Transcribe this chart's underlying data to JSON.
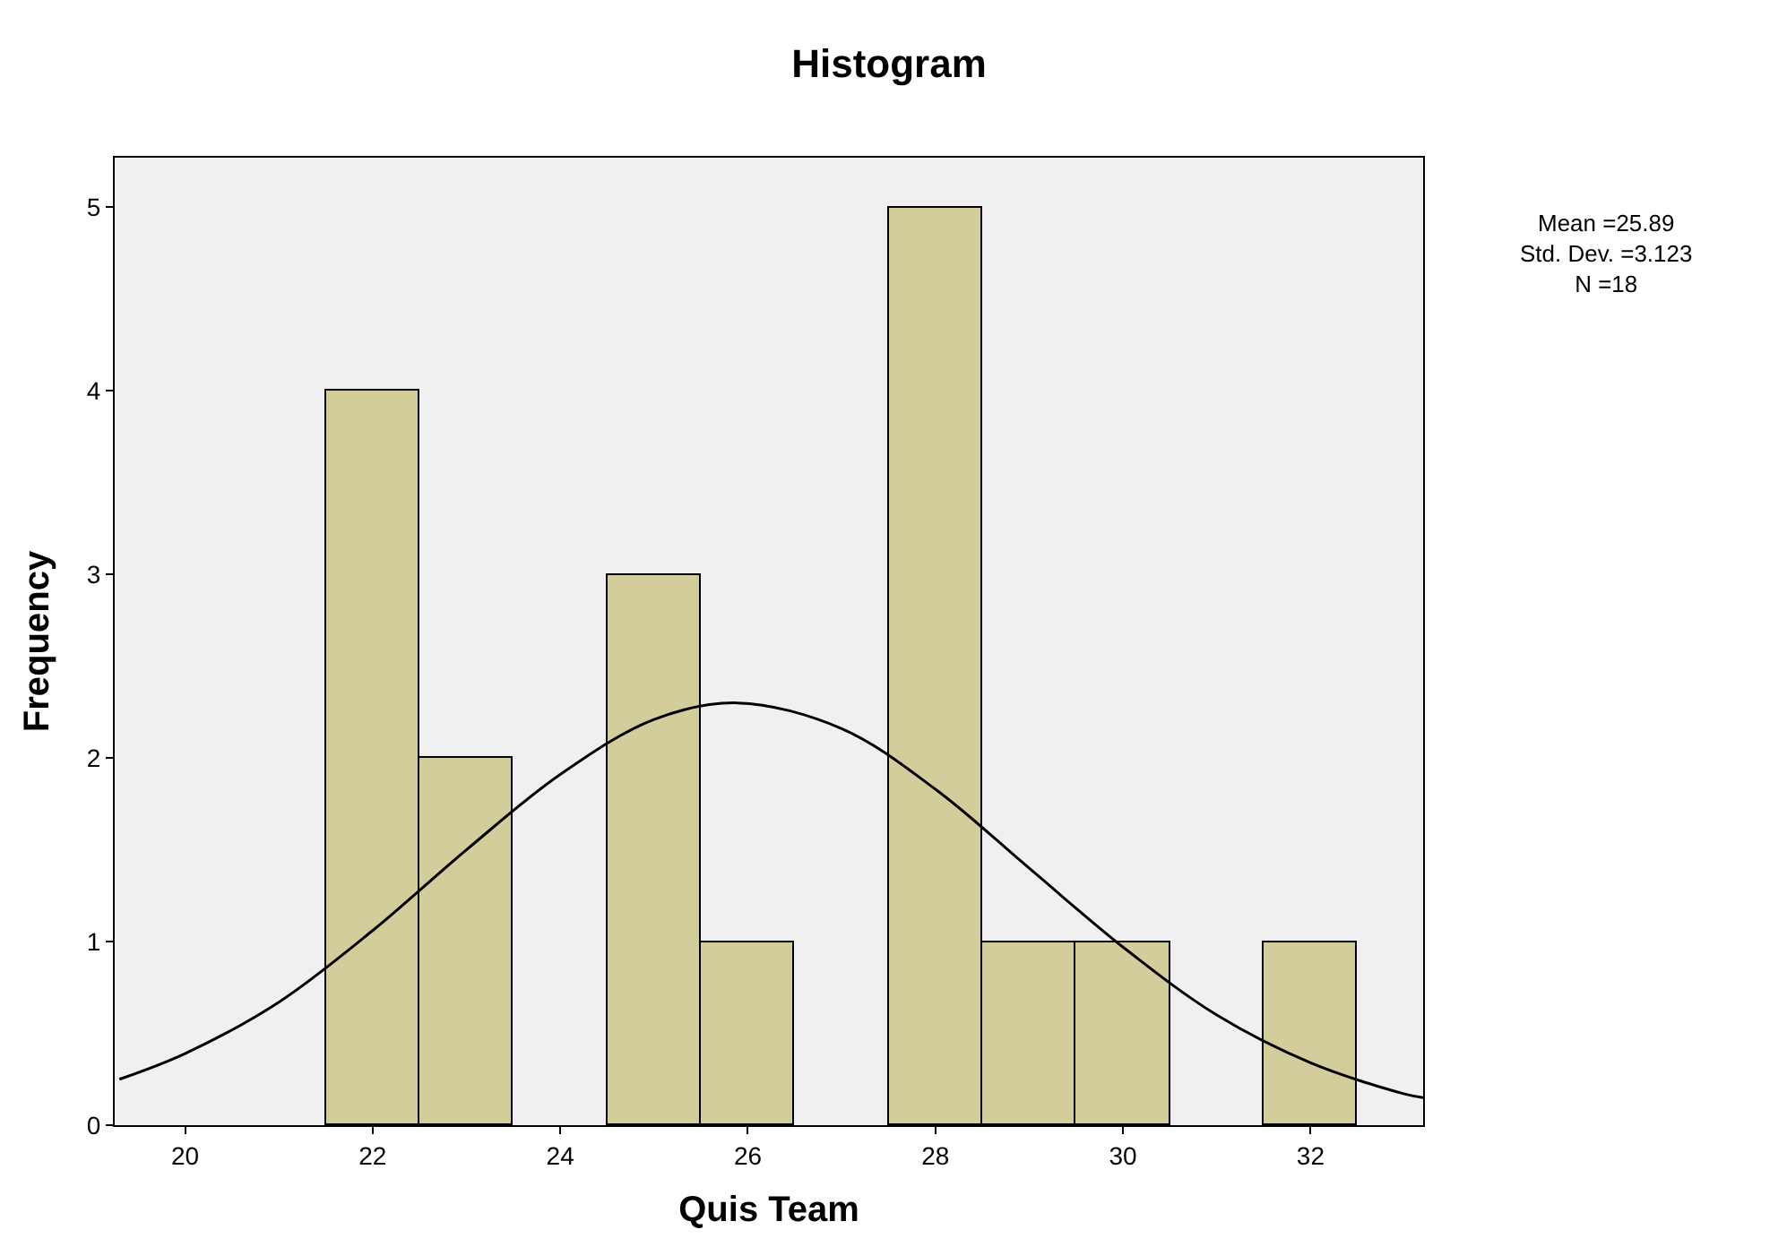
{
  "chart_data": {
    "type": "histogram",
    "title": "Histogram",
    "xlabel": "Quis Team",
    "ylabel": "Frequency",
    "bins": [
      21.5,
      22.5,
      23.5,
      24.5,
      25.5,
      26.5,
      27.5,
      28.5,
      29.5,
      30.5,
      31.5,
      32.5
    ],
    "values": [
      4,
      2,
      0,
      3,
      1,
      0,
      5,
      1,
      1,
      0,
      1
    ],
    "color": "#d3cd9b",
    "series": [
      {
        "type": "line",
        "color": "#000000",
        "x": [
          19.3,
          20,
          21,
          22,
          23,
          24,
          25,
          25.89,
          27,
          28,
          29,
          30,
          31,
          32,
          33,
          33.2
        ],
        "values": [
          0.25,
          0.39,
          0.67,
          1.06,
          1.5,
          1.91,
          2.21,
          2.3,
          2.16,
          1.83,
          1.4,
          0.97,
          0.6,
          0.34,
          0.17,
          0.15
        ]
      }
    ],
    "xlim": [
      19.25,
      33.2
    ],
    "xticks": [
      20,
      22,
      24,
      26,
      28,
      30,
      32
    ],
    "ylim": [
      0,
      5.27
    ],
    "yticks": [
      0,
      1,
      2,
      3,
      4,
      5
    ],
    "annotations": [
      "Mean =25.89\nStd. Dev. =3.123\nN =18"
    ]
  }
}
